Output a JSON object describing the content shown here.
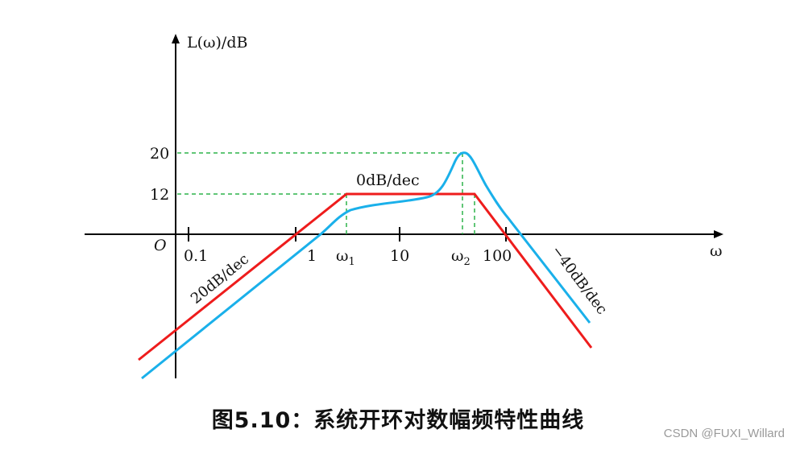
{
  "figure": {
    "y_axis_label": "L(ω)/dB",
    "x_axis_label": "ω",
    "origin_label": "O",
    "x_ticks": [
      "0.1",
      "1",
      "ω",
      "10",
      "ω",
      "100"
    ],
    "omega1_sub": "1",
    "omega2_sub": "2",
    "y_ticks": [
      "20",
      "12"
    ],
    "slopes": {
      "left": "20dB/dec",
      "middle": "0dB/dec",
      "right": "−40dB/dec"
    },
    "colors": {
      "asymptote": "#ee1c1c",
      "actual": "#1ab0ea",
      "guide": "#2db34a",
      "axis": "#000000"
    }
  },
  "caption": "图5.10：系统开环对数幅频特性曲线",
  "watermark": "CSDN @FUXI_Willard"
}
